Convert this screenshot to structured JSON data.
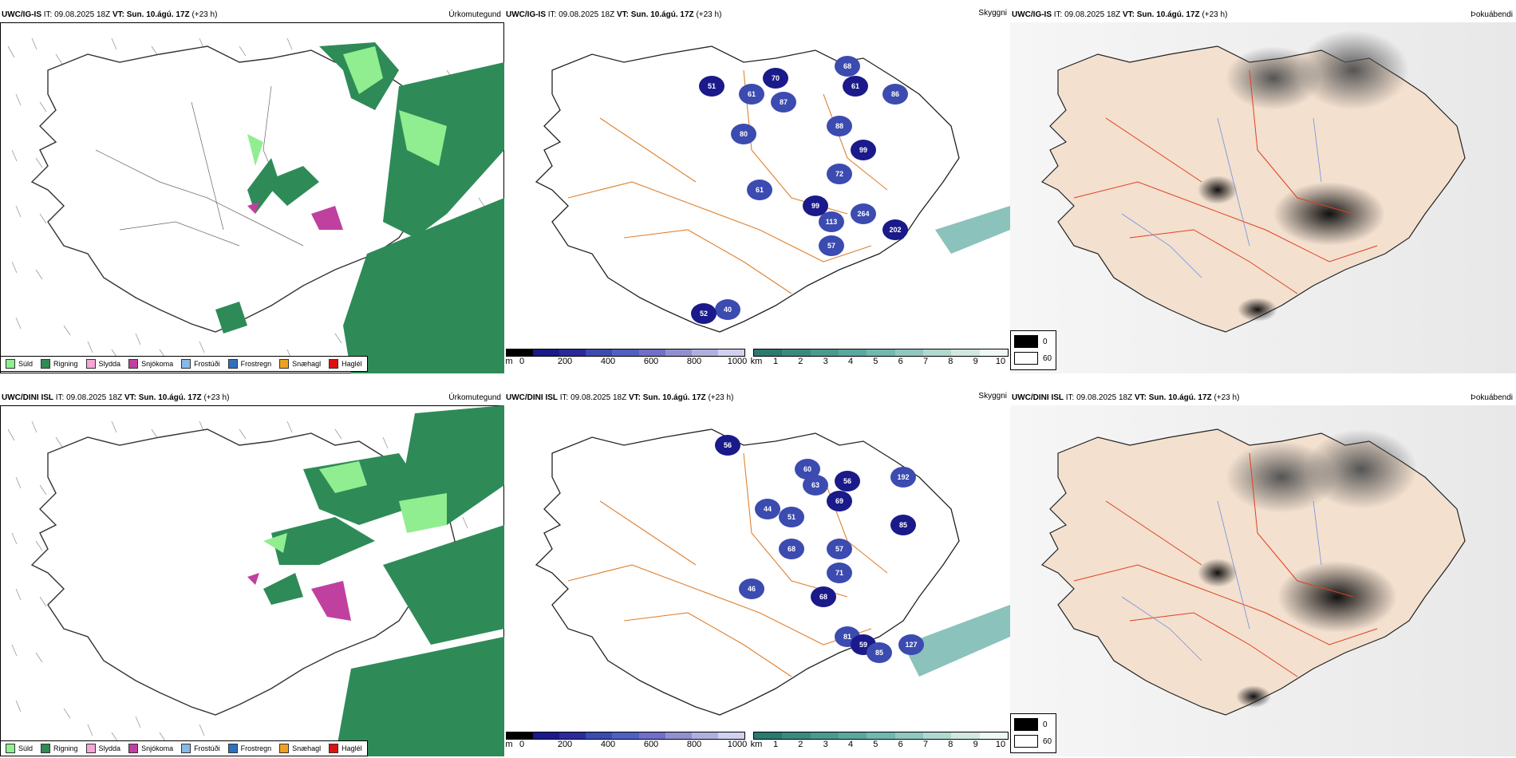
{
  "rows": [
    {
      "model": "UWC/IG-IS",
      "it": "IT: 09.08.2025 18Z",
      "vt_label": "VT:",
      "vt": "Sun. 10.ágú. 17Z",
      "lead": "(+23 h)",
      "precip_title": "Úrkomutegund",
      "cloud_title": "Skyggni",
      "fog_title": "Þokuábendi",
      "cloud_labels": [
        "51",
        "61",
        "80",
        "70",
        "87",
        "68",
        "61",
        "86",
        "88",
        "99",
        "72",
        "61",
        "99",
        "113",
        "264",
        "202",
        "57",
        "40",
        "52"
      ]
    },
    {
      "model": "UWC/DINI ISL",
      "it": "IT: 09.08.2025 18Z",
      "vt_label": "VT:",
      "vt": "Sun. 10.ágú. 17Z",
      "lead": "(+23 h)",
      "precip_title": "Úrkomutegund",
      "cloud_title": "Skyggni",
      "fog_title": "Þokuábendi",
      "cloud_labels": [
        "56",
        "60",
        "63",
        "56",
        "192",
        "44",
        "69",
        "51",
        "68",
        "85",
        "57",
        "71",
        "68",
        "46",
        "81",
        "59",
        "85",
        "127"
      ]
    }
  ],
  "precip_legend": [
    {
      "label": "Súld",
      "color": "#90ee90"
    },
    {
      "label": "Rigning",
      "color": "#2e8b57"
    },
    {
      "label": "Slydda",
      "color": "#f4a6d7"
    },
    {
      "label": "Snjókoma",
      "color": "#c040a0"
    },
    {
      "label": "Frostúði",
      "color": "#87b8e8"
    },
    {
      "label": "Frostregn",
      "color": "#3070c0"
    },
    {
      "label": "Snæhagl",
      "color": "#f0a020"
    },
    {
      "label": "Haglél",
      "color": "#e01010"
    }
  ],
  "cbar_m": {
    "unit": "m",
    "ticks": [
      "0",
      "200",
      "400",
      "600",
      "800",
      "1000"
    ]
  },
  "cbar_km": {
    "unit": "km",
    "ticks": [
      "1",
      "2",
      "3",
      "4",
      "5",
      "6",
      "7",
      "8",
      "9",
      "10"
    ]
  },
  "fog_legend": {
    "top": "0",
    "bottom": "60"
  },
  "colors": {
    "rain": "#2e8b57",
    "drizzle": "#90ee90",
    "snow": "#c040a0",
    "cloud_dark": "#1a1a8a",
    "cloud_mid": "#3b4bb0",
    "vis_teal": "#5aa8a0",
    "land": "#f3e0cf",
    "roads": "#e07020",
    "rivers": "#7090e0"
  }
}
